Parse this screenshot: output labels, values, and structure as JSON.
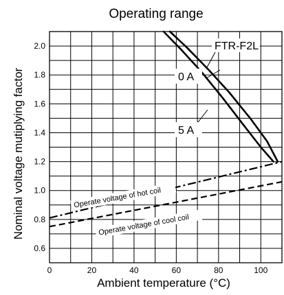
{
  "chart_data": {
    "type": "line",
    "title": "Operating range",
    "xlabel": "Ambient temperature (°C)",
    "ylabel": "Nominal voltage mutiplying factor",
    "xlim": [
      0,
      110
    ],
    "ylim": [
      0.5,
      2.1
    ],
    "x_ticks": [
      0,
      20,
      40,
      60,
      80,
      100
    ],
    "y_ticks": [
      0.6,
      0.8,
      1.0,
      1.2,
      1.4,
      1.6,
      1.8,
      2.0
    ],
    "grid": true,
    "series": [
      {
        "name": "0 A",
        "x": [
          57,
          65,
          75,
          85,
          95,
          103,
          108
        ],
        "y": [
          2.1,
          1.99,
          1.84,
          1.68,
          1.5,
          1.34,
          1.2
        ]
      },
      {
        "name": "5 A",
        "x": [
          54,
          62,
          72,
          82,
          92,
          100,
          106
        ],
        "y": [
          2.1,
          1.98,
          1.82,
          1.64,
          1.45,
          1.3,
          1.2
        ]
      },
      {
        "name": "Operate voltage of hot coil",
        "x": [
          0,
          110
        ],
        "y": [
          0.81,
          1.2
        ]
      },
      {
        "name": "Operate voltage of cool coil",
        "x": [
          0,
          110
        ],
        "y": [
          0.75,
          1.06
        ]
      }
    ],
    "annotations": [
      {
        "text": "FTR-F2L"
      },
      {
        "text": "0 A"
      },
      {
        "text": "5 A"
      },
      {
        "text": "Operate voltage of hot coil"
      },
      {
        "text": "Operate voltage of cool coil"
      }
    ]
  }
}
